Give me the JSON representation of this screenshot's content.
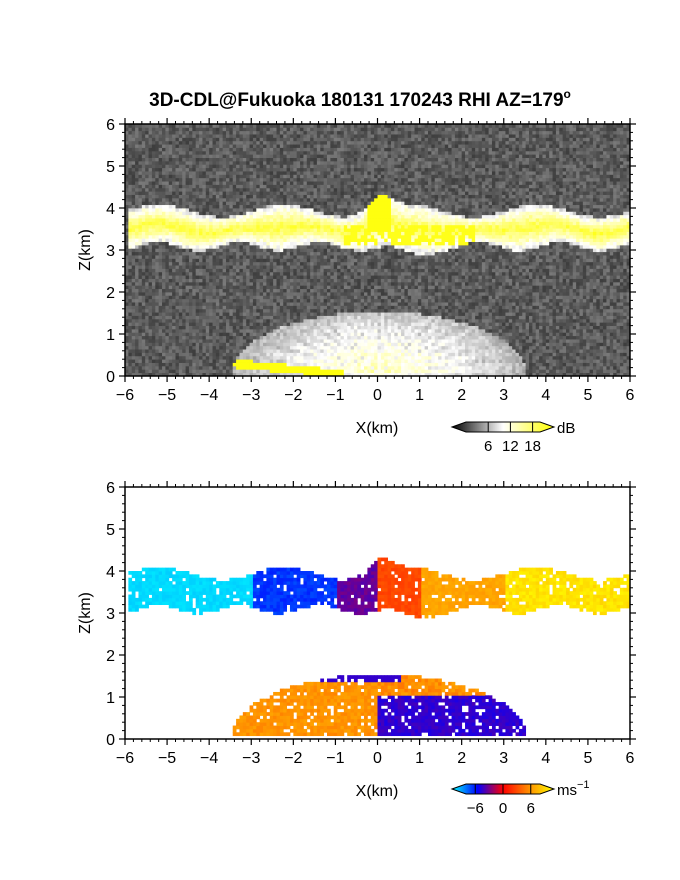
{
  "figure": {
    "title": "3D-CDL@Fukuoka 180131 170243 RHI AZ=179",
    "title_superscript": "o"
  },
  "chart_data": [
    {
      "type": "heatmap",
      "panel": "reflectivity",
      "xlabel": "X(km)",
      "ylabel": "Z(km)",
      "xlim": [
        -6,
        6
      ],
      "ylim": [
        0,
        6
      ],
      "xticks": [
        -6,
        -5,
        -4,
        -3,
        -2,
        -1,
        0,
        1,
        2,
        3,
        4,
        5,
        6
      ],
      "yticks": [
        0,
        1,
        2,
        3,
        4,
        5,
        6
      ],
      "colorbar": {
        "unit": "dB",
        "ticks": [
          6,
          12,
          18
        ],
        "range": [
          0,
          20
        ],
        "colors": [
          "#000000",
          "#ffffff",
          "#ffff00"
        ]
      },
      "features": [
        {
          "name": "cloud layer",
          "x_range": [
            -6,
            6
          ],
          "z_range": [
            3.0,
            4.2
          ]
        },
        {
          "name": "boundary layer",
          "x_range": [
            -3.5,
            3.5
          ],
          "z_range": [
            0.0,
            1.5
          ]
        }
      ],
      "background": "#181818"
    },
    {
      "type": "heatmap",
      "panel": "doppler velocity",
      "xlabel": "X(km)",
      "ylabel": "Z(km)",
      "xlim": [
        -6,
        6
      ],
      "ylim": [
        0,
        6
      ],
      "xticks": [
        -6,
        -5,
        -4,
        -3,
        -2,
        -1,
        0,
        1,
        2,
        3,
        4,
        5,
        6
      ],
      "yticks": [
        0,
        1,
        2,
        3,
        4,
        5,
        6
      ],
      "colorbar": {
        "unit": "ms",
        "unit_superscript": "−1",
        "ticks": [
          "−6",
          "0",
          "6"
        ],
        "range": [
          -8,
          8
        ],
        "colors": [
          "#00ffff",
          "#0000ff",
          "#ff0000",
          "#ff8c00",
          "#ffff00"
        ]
      },
      "features": [
        {
          "name": "cloud layer",
          "x_range": [
            -6,
            6
          ],
          "z_range": [
            3.0,
            4.5
          ]
        },
        {
          "name": "boundary layer",
          "x_range": [
            -3.5,
            3.3
          ],
          "z_range": [
            0.0,
            1.6
          ]
        }
      ],
      "background": "#ffffff"
    }
  ]
}
